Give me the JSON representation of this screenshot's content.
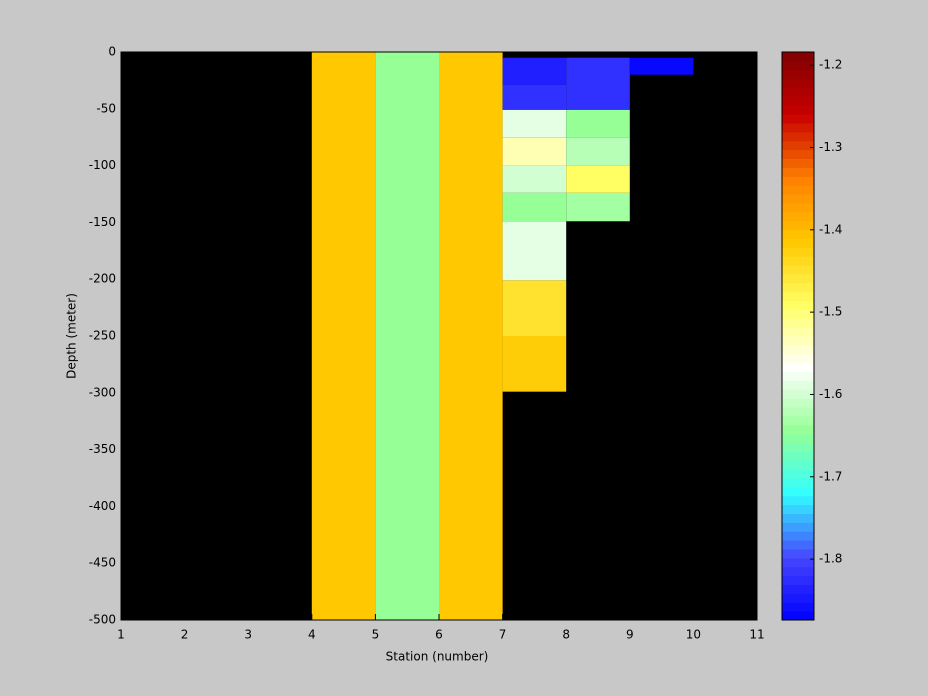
{
  "chart_data": {
    "type": "heatmap",
    "xlabel": "Station (number)",
    "ylabel": "Depth (meter)",
    "xlim": [
      1,
      11
    ],
    "xticks": [
      1,
      2,
      3,
      4,
      5,
      6,
      7,
      8,
      9,
      10,
      11
    ],
    "ylim": [
      -500,
      0
    ],
    "yticks": [
      0,
      -50,
      -100,
      -150,
      -200,
      -250,
      -300,
      -350,
      -400,
      -450,
      -500
    ],
    "background": "#000000",
    "colormap": [
      "#0000ff",
      "#4646ff",
      "#32ffff",
      "#96ff96",
      "#ffffff",
      "#ffff64",
      "#ffc800",
      "#ff8000",
      "#c80000",
      "#800000"
    ],
    "clim": [
      -1.874,
      -1.184
    ],
    "colorbar_ticks": [
      -1.2,
      -1.3,
      -1.4,
      -1.5,
      -1.6,
      -1.7,
      -1.8
    ],
    "cells": [
      {
        "x": [
          4,
          5
        ],
        "y": [
          0,
          -500
        ],
        "value": -1.414
      },
      {
        "x": [
          5,
          6
        ],
        "y": [
          0,
          -500
        ],
        "value": -1.644
      },
      {
        "x": [
          6,
          7
        ],
        "y": [
          0,
          -500
        ],
        "value": -1.414
      },
      {
        "x": [
          7,
          8
        ],
        "y": [
          -5,
          -29
        ],
        "value": -1.84
      },
      {
        "x": [
          7,
          8
        ],
        "y": [
          -29,
          -51
        ],
        "value": -1.82
      },
      {
        "x": [
          7,
          8
        ],
        "y": [
          -51,
          -75
        ],
        "value": -1.586
      },
      {
        "x": [
          7,
          8
        ],
        "y": [
          -75,
          -100
        ],
        "value": -1.53
      },
      {
        "x": [
          7,
          8
        ],
        "y": [
          -100,
          -124
        ],
        "value": -1.6
      },
      {
        "x": [
          7,
          8
        ],
        "y": [
          -124,
          -149
        ],
        "value": -1.644
      },
      {
        "x": [
          7,
          8
        ],
        "y": [
          -149,
          -201
        ],
        "value": -1.586
      },
      {
        "x": [
          7,
          8
        ],
        "y": [
          -201,
          -250
        ],
        "value": -1.45
      },
      {
        "x": [
          7,
          8
        ],
        "y": [
          -250,
          -299
        ],
        "value": -1.42
      },
      {
        "x": [
          8,
          9
        ],
        "y": [
          -5,
          -51
        ],
        "value": -1.82
      },
      {
        "x": [
          8,
          9
        ],
        "y": [
          -51,
          -75
        ],
        "value": -1.644
      },
      {
        "x": [
          8,
          9
        ],
        "y": [
          -75,
          -100
        ],
        "value": -1.62
      },
      {
        "x": [
          8,
          9
        ],
        "y": [
          -100,
          -124
        ],
        "value": -1.49
      },
      {
        "x": [
          8,
          9
        ],
        "y": [
          -124,
          -149
        ],
        "value": -1.635
      },
      {
        "x": [
          9,
          10
        ],
        "y": [
          -5,
          -20
        ],
        "value": -1.865
      }
    ]
  }
}
